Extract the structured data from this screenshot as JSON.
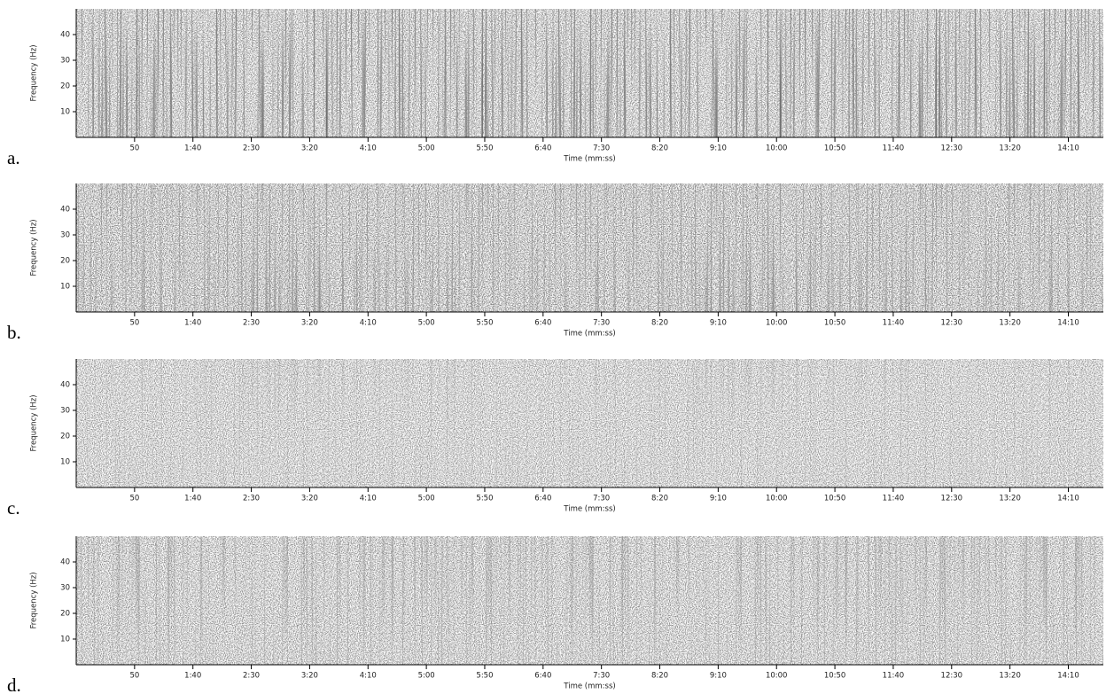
{
  "chart_data": [
    {
      "type": "spectrogram",
      "label": "a.",
      "xlabel": "Time (mm:ss)",
      "ylabel": "Frequency (Hz)",
      "xlim": [
        0,
        880
      ],
      "ylim": [
        0,
        50
      ],
      "xticks": [
        50,
        {
          "value": 100,
          "label": "1:40"
        },
        {
          "value": 150,
          "label": "2:30"
        },
        {
          "value": 200,
          "label": "3:20"
        },
        {
          "value": 250,
          "label": "4:10"
        },
        {
          "value": 300,
          "label": "5:00"
        },
        {
          "value": 350,
          "label": "5:50"
        },
        {
          "value": 400,
          "label": "6:40"
        },
        {
          "value": 450,
          "label": "7:30"
        },
        {
          "value": 500,
          "label": "8:20"
        },
        {
          "value": 550,
          "label": "9:10"
        },
        {
          "value": 600,
          "label": "10:00"
        },
        {
          "value": 650,
          "label": "10:50"
        },
        {
          "value": 700,
          "label": "11:40"
        },
        {
          "value": 750,
          "label": "12:30"
        },
        {
          "value": 800,
          "label": "13:20"
        },
        {
          "value": 850,
          "label": "14:10"
        }
      ],
      "yticks": [
        10,
        20,
        30,
        40
      ]
    },
    {
      "type": "spectrogram",
      "label": "b.",
      "xlabel": "Time (mm:ss)",
      "ylabel": "Frequency (Hz)",
      "xlim": [
        0,
        880
      ],
      "ylim": [
        0,
        50
      ],
      "xticks": [
        50,
        {
          "value": 100,
          "label": "1:40"
        },
        {
          "value": 150,
          "label": "2:30"
        },
        {
          "value": 200,
          "label": "3:20"
        },
        {
          "value": 250,
          "label": "4:10"
        },
        {
          "value": 300,
          "label": "5:00"
        },
        {
          "value": 350,
          "label": "5:50"
        },
        {
          "value": 400,
          "label": "6:40"
        },
        {
          "value": 450,
          "label": "7:30"
        },
        {
          "value": 500,
          "label": "8:20"
        },
        {
          "value": 550,
          "label": "9:10"
        },
        {
          "value": 600,
          "label": "10:00"
        },
        {
          "value": 650,
          "label": "10:50"
        },
        {
          "value": 700,
          "label": "11:40"
        },
        {
          "value": 750,
          "label": "12:30"
        },
        {
          "value": 800,
          "label": "13:20"
        },
        {
          "value": 850,
          "label": "14:10"
        }
      ],
      "yticks": [
        10,
        20,
        30,
        40
      ]
    },
    {
      "type": "spectrogram",
      "label": "c.",
      "xlabel": "Time (mm:ss)",
      "ylabel": "Frequency (Hz)",
      "xlim": [
        0,
        880
      ],
      "ylim": [
        0,
        50
      ],
      "xticks": [
        50,
        {
          "value": 100,
          "label": "1:40"
        },
        {
          "value": 150,
          "label": "2:30"
        },
        {
          "value": 200,
          "label": "3:20"
        },
        {
          "value": 250,
          "label": "4:10"
        },
        {
          "value": 300,
          "label": "5:00"
        },
        {
          "value": 350,
          "label": "5:50"
        },
        {
          "value": 400,
          "label": "6:40"
        },
        {
          "value": 450,
          "label": "7:30"
        },
        {
          "value": 500,
          "label": "8:20"
        },
        {
          "value": 550,
          "label": "9:10"
        },
        {
          "value": 600,
          "label": "10:00"
        },
        {
          "value": 650,
          "label": "10:50"
        },
        {
          "value": 700,
          "label": "11:40"
        },
        {
          "value": 750,
          "label": "12:30"
        },
        {
          "value": 800,
          "label": "13:20"
        },
        {
          "value": 850,
          "label": "14:10"
        }
      ],
      "yticks": [
        10,
        20,
        30,
        40
      ]
    },
    {
      "type": "spectrogram",
      "label": "d.",
      "xlabel": "Time (mm:ss)",
      "ylabel": "Frequency (Hz)",
      "xlim": [
        0,
        880
      ],
      "ylim": [
        0,
        50
      ],
      "xticks": [
        50,
        {
          "value": 100,
          "label": "1:40"
        },
        {
          "value": 150,
          "label": "2:30"
        },
        {
          "value": 200,
          "label": "3:20"
        },
        {
          "value": 250,
          "label": "4:10"
        },
        {
          "value": 300,
          "label": "5:00"
        },
        {
          "value": 350,
          "label": "5:50"
        },
        {
          "value": 400,
          "label": "6:40"
        },
        {
          "value": 450,
          "label": "7:30"
        },
        {
          "value": 500,
          "label": "8:20"
        },
        {
          "value": 550,
          "label": "9:10"
        },
        {
          "value": 600,
          "label": "10:00"
        },
        {
          "value": 650,
          "label": "10:50"
        },
        {
          "value": 700,
          "label": "11:40"
        },
        {
          "value": 750,
          "label": "12:30"
        },
        {
          "value": 800,
          "label": "13:20"
        },
        {
          "value": 850,
          "label": "14:10"
        }
      ],
      "yticks": [
        10,
        20,
        30,
        40
      ]
    }
  ]
}
